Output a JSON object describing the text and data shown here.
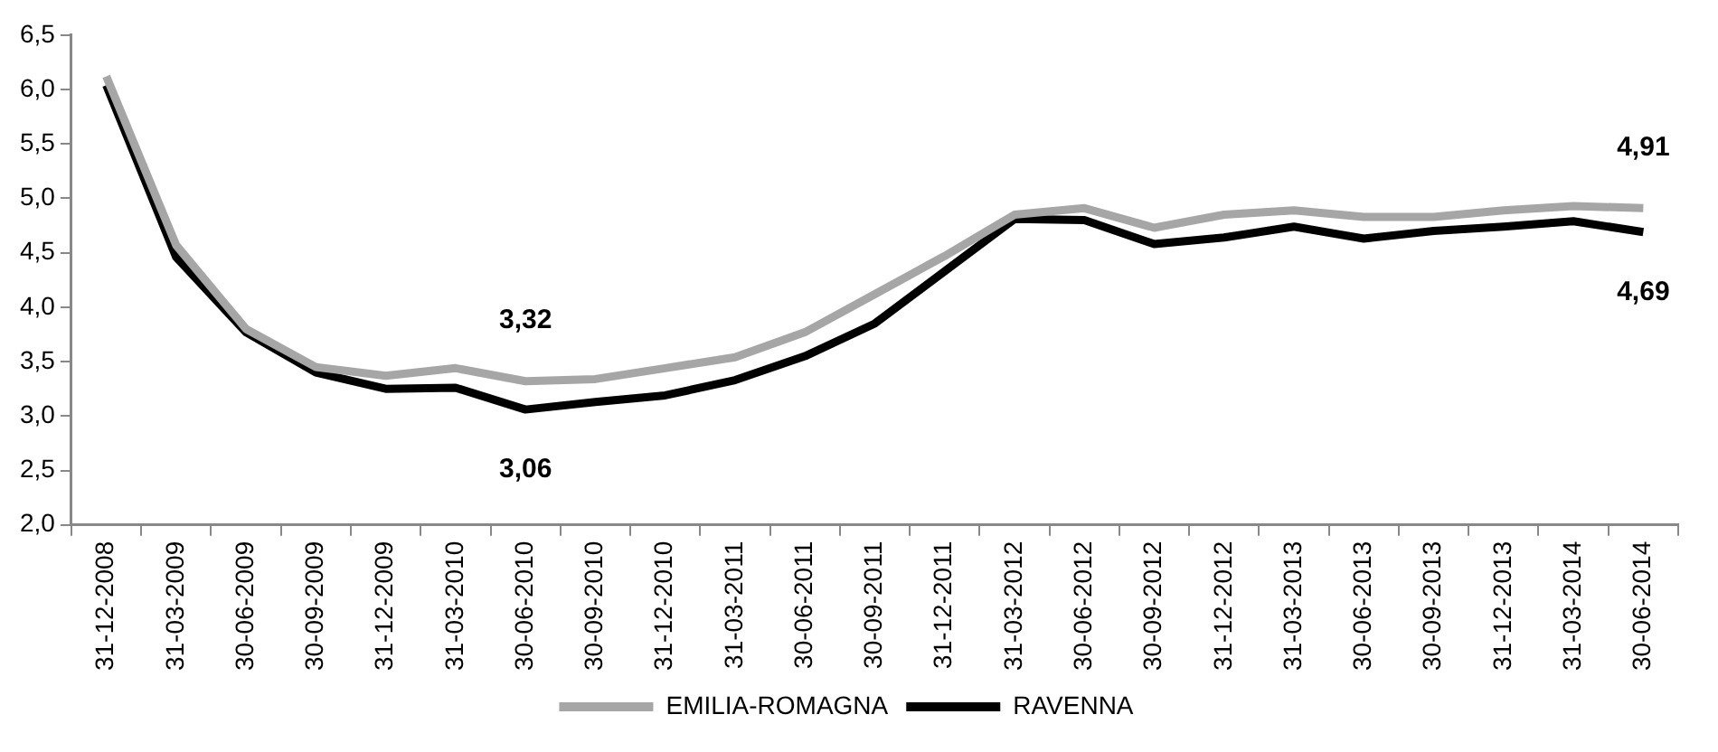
{
  "chart_data": {
    "type": "line",
    "categories": [
      "31-12-2008",
      "31-03-2009",
      "30-06-2009",
      "30-09-2009",
      "31-12-2009",
      "31-03-2010",
      "30-06-2010",
      "30-09-2010",
      "31-12-2010",
      "31-03-2011",
      "30-06-2011",
      "30-09-2011",
      "31-12-2011",
      "31-03-2012",
      "30-06-2012",
      "30-09-2012",
      "31-12-2012",
      "31-03-2013",
      "30-06-2013",
      "30-09-2013",
      "31-12-2013",
      "31-03-2014",
      "30-06-2014"
    ],
    "series": [
      {
        "name": "EMILIA-ROMAGNA",
        "color": "#a6a6a6",
        "values": [
          6.12,
          4.57,
          3.8,
          3.45,
          3.37,
          3.44,
          3.32,
          3.34,
          3.44,
          3.54,
          3.77,
          4.12,
          4.47,
          4.85,
          4.91,
          4.73,
          4.85,
          4.89,
          4.83,
          4.83,
          4.89,
          4.93,
          4.91
        ],
        "value_labels": [
          null,
          null,
          null,
          null,
          null,
          null,
          "3,32",
          null,
          null,
          null,
          null,
          null,
          null,
          null,
          null,
          null,
          null,
          null,
          null,
          null,
          null,
          null,
          "4,91"
        ]
      },
      {
        "name": "RAVENNA",
        "color": "#000000",
        "values": [
          6.04,
          4.46,
          3.77,
          3.4,
          3.25,
          3.26,
          3.06,
          3.13,
          3.19,
          3.33,
          3.55,
          3.85,
          4.33,
          4.81,
          4.8,
          4.58,
          4.64,
          4.74,
          4.63,
          4.7,
          4.74,
          4.79,
          4.69
        ],
        "value_labels": [
          null,
          null,
          null,
          null,
          null,
          null,
          "3,06",
          null,
          null,
          null,
          null,
          null,
          null,
          null,
          null,
          null,
          null,
          null,
          null,
          null,
          null,
          null,
          "4,69"
        ]
      }
    ],
    "ylim": [
      2,
      6.5
    ],
    "yticks": [
      {
        "value": 2,
        "label": "2,0"
      },
      {
        "value": 2.5,
        "label": "2,5"
      },
      {
        "value": 3,
        "label": "3,0"
      },
      {
        "value": 3.5,
        "label": "3,5"
      },
      {
        "value": 4,
        "label": "4,0"
      },
      {
        "value": 4.5,
        "label": "4,5"
      },
      {
        "value": 5,
        "label": "5,0"
      },
      {
        "value": 5.5,
        "label": "5,5"
      },
      {
        "value": 6,
        "label": "6,0"
      },
      {
        "value": 6.5,
        "label": "6,5"
      }
    ],
    "grid": false,
    "legend": "bottom",
    "marker": "none",
    "line_style": "solid"
  }
}
